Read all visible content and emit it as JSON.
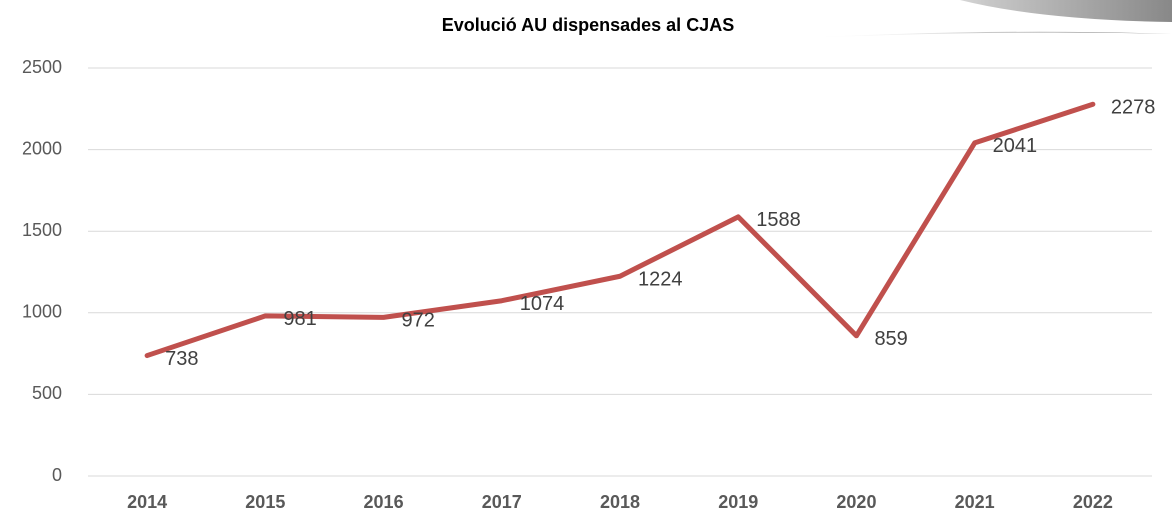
{
  "chart_data": {
    "type": "line",
    "title": "Evolució AU dispensades al CJAS",
    "categories": [
      "2014",
      "2015",
      "2016",
      "2017",
      "2018",
      "2019",
      "2020",
      "2021",
      "2022"
    ],
    "values": [
      738,
      981,
      972,
      1074,
      1224,
      1588,
      859,
      2041,
      2278
    ],
    "color": "#c0504d",
    "ylim": [
      0,
      2500
    ],
    "yticks": [
      0,
      500,
      1000,
      1500,
      2000,
      2500
    ],
    "grid": true
  }
}
